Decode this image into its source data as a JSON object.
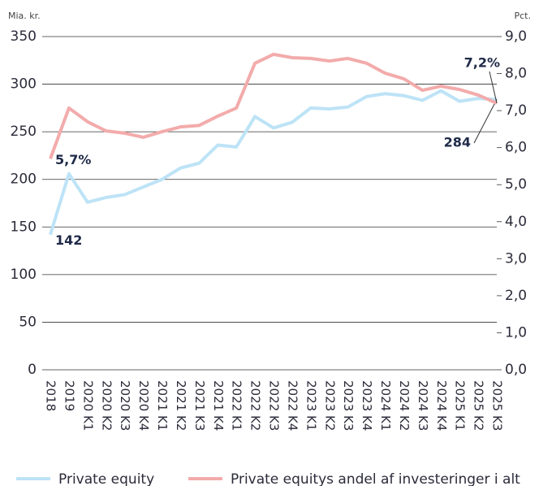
{
  "chart_data": {
    "type": "line",
    "y_label": "Mia. kr.",
    "y2_label": "Pct.",
    "categories": [
      "2018",
      "2019",
      "2020 K1",
      "2020 K2",
      "2020 K3",
      "2020 K4",
      "2021 K1",
      "2021 K2",
      "2021 K3",
      "2021 K4",
      "2022 K1",
      "2022 K2",
      "2022 K3",
      "2022 K4",
      "2023 K1",
      "2023 K2",
      "2023 K3",
      "2023 K4",
      "2024 K1",
      "2024 K2",
      "2024 K3",
      "2024 K4",
      "2025 K1",
      "2025 K2",
      "2025 K3"
    ],
    "series": [
      {
        "name": "Private equity",
        "color": "#bde3f6",
        "values": [
          142,
          206,
          176,
          181,
          184,
          192,
          200,
          212,
          217,
          236,
          234,
          266,
          254,
          260,
          275,
          274,
          276,
          287,
          290,
          288,
          283,
          293,
          282,
          285,
          284
        ]
      },
      {
        "name": "Private equitys andel af investeringer i alt",
        "color": "#f3abab",
        "axis": "y2",
        "values": [
          5.7,
          7.07,
          6.7,
          6.45,
          6.39,
          6.28,
          6.43,
          6.56,
          6.6,
          6.85,
          7.07,
          8.28,
          8.52,
          8.43,
          8.41,
          8.34,
          8.41,
          8.28,
          8.01,
          7.86,
          7.55,
          7.66,
          7.57,
          7.42,
          7.2
        ],
        "value_labels": [
          "5,7%",
          null,
          null,
          null,
          null,
          null,
          null,
          null,
          null,
          null,
          null,
          null,
          null,
          null,
          null,
          null,
          null,
          null,
          null,
          null,
          null,
          null,
          null,
          null,
          "7,2%"
        ]
      }
    ],
    "ylim": [
      0,
      350
    ],
    "yticks": [
      0,
      50,
      100,
      150,
      200,
      250,
      300,
      350
    ],
    "y2lim": [
      0,
      9
    ],
    "y2ticks": [
      {
        "value": 0,
        "label": "0,0"
      },
      {
        "value": 1,
        "label": "1,0"
      },
      {
        "value": 2,
        "label": "2,0"
      },
      {
        "value": 3,
        "label": "3,0"
      },
      {
        "value": 4,
        "label": "4,0"
      },
      {
        "value": 5,
        "label": "5,0"
      },
      {
        "value": 6,
        "label": "6,0"
      },
      {
        "value": 7,
        "label": "7,0"
      },
      {
        "value": 8,
        "label": "8,0"
      },
      {
        "value": 9,
        "label": "9,0"
      }
    ],
    "grid": true,
    "legend": "bottom"
  }
}
